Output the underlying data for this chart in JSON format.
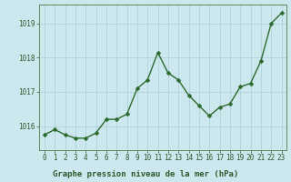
{
  "x": [
    0,
    1,
    2,
    3,
    4,
    5,
    6,
    7,
    8,
    9,
    10,
    11,
    12,
    13,
    14,
    15,
    16,
    17,
    18,
    19,
    20,
    21,
    22,
    23
  ],
  "y": [
    1015.75,
    1015.9,
    1015.75,
    1015.65,
    1015.65,
    1015.8,
    1016.2,
    1016.2,
    1016.35,
    1017.1,
    1017.35,
    1018.15,
    1017.55,
    1017.35,
    1016.9,
    1016.6,
    1016.3,
    1016.55,
    1016.65,
    1017.15,
    1017.25,
    1017.9,
    1019.0,
    1019.3
  ],
  "line_color": "#2d6a2d",
  "marker": "D",
  "marker_size": 2.5,
  "line_width": 1.0,
  "background_color": "#cce8ee",
  "grid_color": "#aacdd5",
  "ylabel_ticks": [
    1016,
    1017,
    1018,
    1019
  ],
  "xlabel_ticks": [
    0,
    1,
    2,
    3,
    4,
    5,
    6,
    7,
    8,
    9,
    10,
    11,
    12,
    13,
    14,
    15,
    16,
    17,
    18,
    19,
    20,
    21,
    22,
    23
  ],
  "ylim": [
    1015.3,
    1019.55
  ],
  "xlim": [
    -0.5,
    23.5
  ],
  "xlabel": "Graphe pression niveau de la mer (hPa)",
  "xlabel_fontsize": 6.5,
  "tick_fontsize": 5.5,
  "tick_color": "#2d5a2d",
  "spine_color": "#5a8a5a"
}
